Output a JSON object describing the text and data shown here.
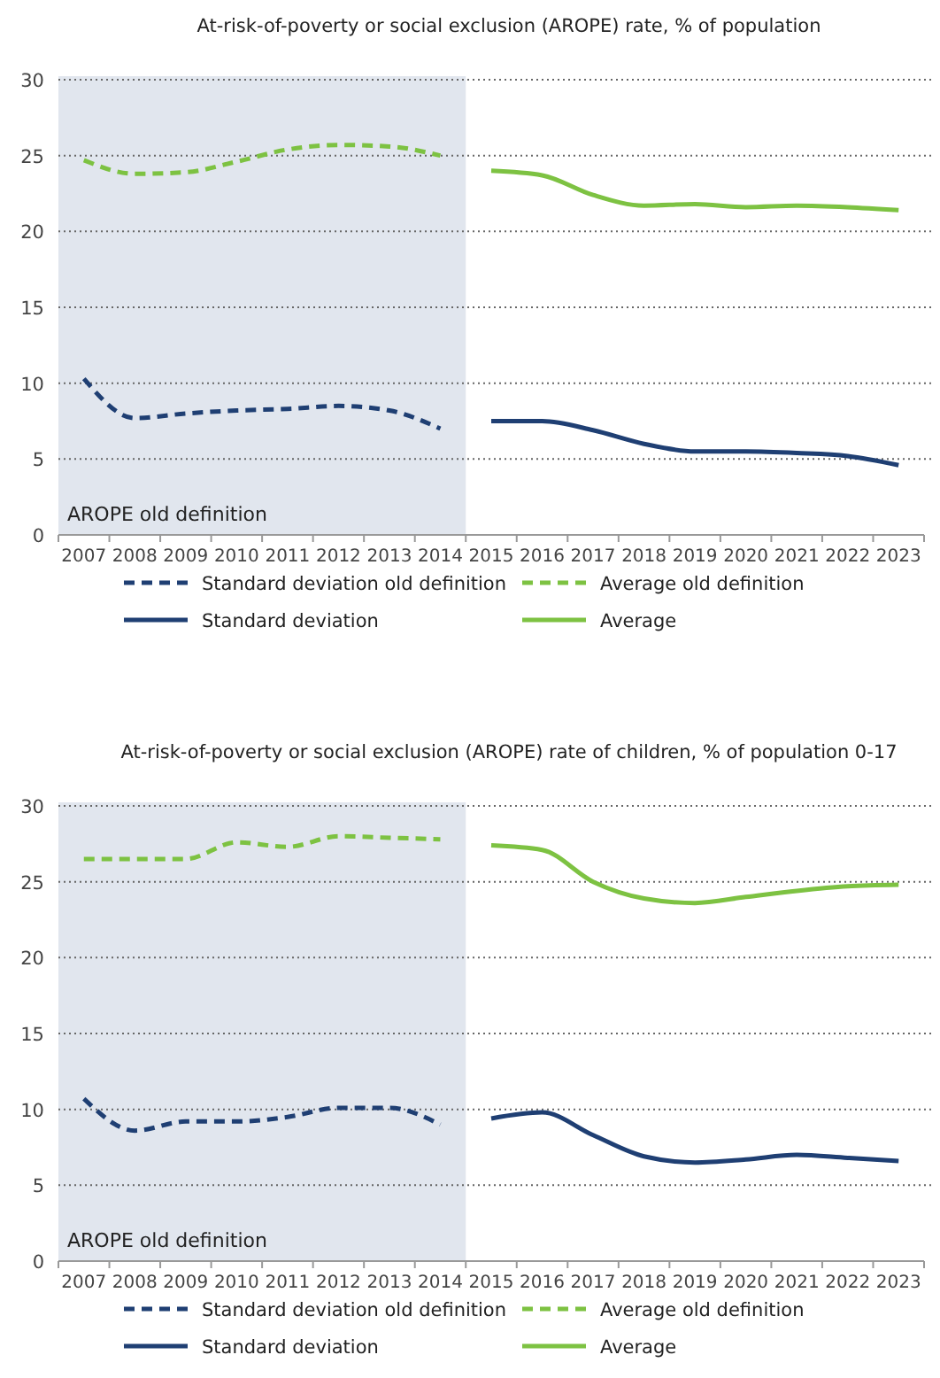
{
  "chart_data": [
    {
      "type": "line",
      "title": "At-risk-of-poverty or social exclusion (AROPE) rate, % of population",
      "categories": [
        "2007",
        "2008",
        "2009",
        "2010",
        "2011",
        "2012",
        "2013",
        "2014",
        "2015",
        "2016",
        "2017",
        "2018",
        "2019",
        "2020",
        "2021",
        "2022",
        "2023"
      ],
      "series": [
        {
          "name": "Standard deviation old definition",
          "color": "#1f3f73",
          "line_style": "dashed",
          "values": [
            10.3,
            7.7,
            8.0,
            8.2,
            8.3,
            8.5,
            8.2,
            7.0,
            null,
            null,
            null,
            null,
            null,
            null,
            null,
            null,
            null
          ]
        },
        {
          "name": "Average old definition",
          "color": "#7dc242",
          "line_style": "dashed",
          "values": [
            24.7,
            23.8,
            23.9,
            24.6,
            25.4,
            25.7,
            25.6,
            25.0,
            null,
            null,
            null,
            null,
            null,
            null,
            null,
            null,
            null
          ]
        },
        {
          "name": "Standard deviation",
          "color": "#1f3f73",
          "line_style": "solid",
          "values": [
            null,
            null,
            null,
            null,
            null,
            null,
            null,
            null,
            7.5,
            7.5,
            6.9,
            6.0,
            5.5,
            5.5,
            5.4,
            5.2,
            4.6
          ]
        },
        {
          "name": "Average",
          "color": "#7dc242",
          "line_style": "solid",
          "values": [
            null,
            null,
            null,
            null,
            null,
            null,
            null,
            null,
            24.0,
            23.7,
            22.4,
            21.7,
            21.8,
            21.6,
            21.7,
            21.6,
            21.4
          ]
        }
      ],
      "ylim": [
        0,
        30
      ],
      "yticks": [
        0,
        5,
        10,
        15,
        20,
        25,
        30
      ],
      "grid": "y",
      "legend": "bottom",
      "bands": [
        {
          "axis": "x",
          "from": "2007",
          "to": "2014",
          "label": "AROPE old definition",
          "color": "#e1e6ee"
        }
      ]
    },
    {
      "type": "line",
      "title": "At-risk-of-poverty or social exclusion (AROPE) rate of children, % of population 0-17",
      "categories": [
        "2007",
        "2008",
        "2009",
        "2010",
        "2011",
        "2012",
        "2013",
        "2014",
        "2015",
        "2016",
        "2017",
        "2018",
        "2019",
        "2020",
        "2021",
        "2022",
        "2023"
      ],
      "series": [
        {
          "name": "Standard deviation old definition",
          "color": "#1f3f73",
          "line_style": "dashed",
          "values": [
            10.7,
            8.6,
            9.2,
            9.2,
            9.5,
            10.1,
            10.1,
            9.0,
            null,
            null,
            null,
            null,
            null,
            null,
            null,
            null,
            null
          ]
        },
        {
          "name": "Average old definition",
          "color": "#7dc242",
          "line_style": "dashed",
          "values": [
            26.5,
            26.5,
            26.5,
            27.6,
            27.3,
            28.0,
            27.9,
            27.8,
            null,
            null,
            null,
            null,
            null,
            null,
            null,
            null,
            null
          ]
        },
        {
          "name": "Standard deviation",
          "color": "#1f3f73",
          "line_style": "solid",
          "values": [
            null,
            null,
            null,
            null,
            null,
            null,
            null,
            null,
            9.4,
            9.8,
            8.3,
            6.9,
            6.5,
            6.7,
            7.0,
            6.8,
            6.6
          ]
        },
        {
          "name": "Average",
          "color": "#7dc242",
          "line_style": "solid",
          "values": [
            null,
            null,
            null,
            null,
            null,
            null,
            null,
            null,
            27.4,
            27.1,
            25.0,
            23.9,
            23.6,
            24.0,
            24.4,
            24.7,
            24.8
          ]
        }
      ],
      "ylim": [
        0,
        30
      ],
      "yticks": [
        0,
        5,
        10,
        15,
        20,
        25,
        30
      ],
      "grid": "y",
      "legend": "bottom",
      "bands": [
        {
          "axis": "x",
          "from": "2007",
          "to": "2014",
          "label": "AROPE old definition",
          "color": "#e1e6ee"
        }
      ]
    }
  ]
}
